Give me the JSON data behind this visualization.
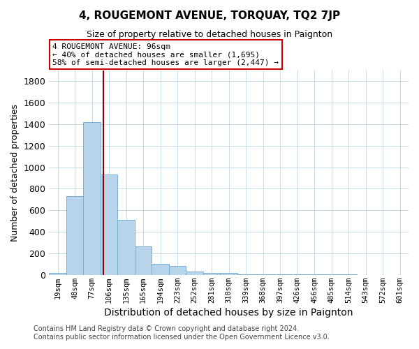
{
  "title": "4, ROUGEMONT AVENUE, TORQUAY, TQ2 7JP",
  "subtitle": "Size of property relative to detached houses in Paignton",
  "xlabel": "Distribution of detached houses by size in Paignton",
  "ylabel": "Number of detached properties",
  "footer_line1": "Contains HM Land Registry data © Crown copyright and database right 2024.",
  "footer_line2": "Contains public sector information licensed under the Open Government Licence v3.0.",
  "bins": [
    "19sqm",
    "48sqm",
    "77sqm",
    "106sqm",
    "135sqm",
    "165sqm",
    "194sqm",
    "223sqm",
    "252sqm",
    "281sqm",
    "310sqm",
    "339sqm",
    "368sqm",
    "397sqm",
    "426sqm",
    "456sqm",
    "485sqm",
    "514sqm",
    "543sqm",
    "572sqm",
    "601sqm"
  ],
  "values": [
    20,
    730,
    1420,
    935,
    510,
    265,
    105,
    85,
    30,
    20,
    15,
    5,
    5,
    5,
    5,
    5,
    5,
    2,
    1,
    1,
    1
  ],
  "bar_color": "#b8d4ea",
  "bar_edge_color": "#7aafd4",
  "grid_color": "#c8dcea",
  "vline_x_index": 2.655,
  "vline_color": "#8b0000",
  "annotation_text": "4 ROUGEMONT AVENUE: 96sqm\n← 40% of detached houses are smaller (1,695)\n58% of semi-detached houses are larger (2,447) →",
  "annotation_box_color": "#ffffff",
  "annotation_box_edge_color": "#cc0000",
  "ylim": [
    0,
    1900
  ],
  "yticks": [
    0,
    200,
    400,
    600,
    800,
    1000,
    1200,
    1400,
    1600,
    1800
  ],
  "background_color": "#ffffff"
}
